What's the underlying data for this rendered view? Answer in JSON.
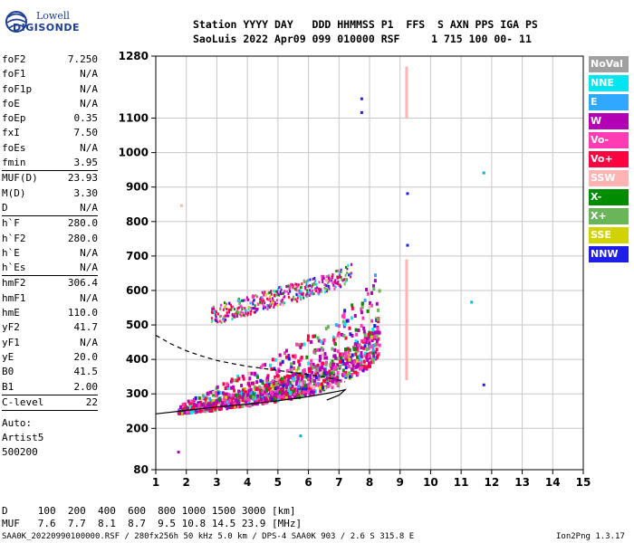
{
  "logo": {
    "line1": "Lowell",
    "line2": "DIGISONDE"
  },
  "header": {
    "row1": "Station YYYY DAY   DDD HHMMSS P1  FFS  S AXN PPS IGA PS",
    "row2": "SaoLuis 2022 Apr09 099 010000 RSF     1 715 100 00- 11"
  },
  "parameters": {
    "group1": [
      {
        "name": "foF2",
        "value": "7.250"
      },
      {
        "name": "foF1",
        "value": "N/A"
      },
      {
        "name": "foF1p",
        "value": "N/A"
      },
      {
        "name": "foE",
        "value": "N/A"
      },
      {
        "name": "foEp",
        "value": "0.35"
      },
      {
        "name": "fxI",
        "value": "7.50"
      },
      {
        "name": "foEs",
        "value": "N/A"
      },
      {
        "name": "fmin",
        "value": "3.95"
      }
    ],
    "group2": [
      {
        "name": "MUF(D)",
        "value": "23.93"
      },
      {
        "name": "M(D)",
        "value": "3.30"
      },
      {
        "name": "D",
        "value": "N/A"
      }
    ],
    "group3": [
      {
        "name": "h`F",
        "value": "280.0"
      },
      {
        "name": "h`F2",
        "value": "280.0"
      },
      {
        "name": "h`E",
        "value": "N/A"
      },
      {
        "name": "h`Es",
        "value": "N/A"
      }
    ],
    "group4": [
      {
        "name": "hmF2",
        "value": "306.4"
      },
      {
        "name": "hmF1",
        "value": "N/A"
      },
      {
        "name": "hmE",
        "value": "110.0"
      },
      {
        "name": "yF2",
        "value": "41.7"
      },
      {
        "name": "yF1",
        "value": "N/A"
      },
      {
        "name": "yE",
        "value": "20.0"
      },
      {
        "name": "B0",
        "value": "41.5"
      },
      {
        "name": "B1",
        "value": "2.00"
      }
    ],
    "group5": [
      {
        "name": "C-level",
        "value": "22"
      }
    ],
    "auto_lines": [
      "Auto:",
      "Artist5",
      "500200"
    ]
  },
  "legend": [
    {
      "label": "NoVal",
      "color": "#a0a0a0"
    },
    {
      "label": "NNE",
      "color": "#00e6f0"
    },
    {
      "label": "E",
      "color": "#30a8ff"
    },
    {
      "label": "W",
      "color": "#b400b4"
    },
    {
      "label": "Vo-",
      "color": "#ff3cb4"
    },
    {
      "label": "Vo+",
      "color": "#ff0040"
    },
    {
      "label": "SSW",
      "color": "#ffb4b4"
    },
    {
      "label": "X-",
      "color": "#008c00"
    },
    {
      "label": "X+",
      "color": "#6ab45a"
    },
    {
      "label": "SSE",
      "color": "#d2d200"
    },
    {
      "label": "NNW",
      "color": "#1e1ee6"
    }
  ],
  "muf_table": {
    "row_d": "D     100  200  400  600  800 1000 1500 3000 [km]",
    "row_muf": "MUF   7.6  7.7  8.1  8.7  9.5 10.8 14.5 23.9 [MHz]"
  },
  "footer": {
    "left": "SAA0K_20220990100000.RSF / 280fx256h 50 kHz 5.0 km / DPS-4 SAA0K 903 / 2.6 S 315.8 E",
    "right": "Ion2Png 1.3.17"
  },
  "chart_data": {
    "type": "scatter",
    "xlim": [
      1,
      15
    ],
    "ylim": [
      80,
      1280
    ],
    "x_ticks": [
      1,
      2,
      3,
      4,
      5,
      6,
      7,
      8,
      9,
      10,
      11,
      12,
      13,
      14,
      15
    ],
    "y_ticks": [
      80,
      200,
      300,
      400,
      500,
      600,
      700,
      800,
      900,
      1000,
      1100,
      1280
    ],
    "xlabel": "",
    "ylabel": "",
    "grid": true,
    "legend_position": "right",
    "profile_curve": [
      [
        1.0,
        242
      ],
      [
        2.0,
        252
      ],
      [
        3.0,
        262
      ],
      [
        4.0,
        270
      ],
      [
        5.0,
        280
      ],
      [
        6.0,
        292
      ],
      [
        7.0,
        308
      ],
      [
        7.2,
        312
      ],
      [
        7.0,
        296
      ],
      [
        6.6,
        282
      ]
    ],
    "dashed_curve": [
      [
        1.0,
        470
      ],
      [
        1.5,
        445
      ],
      [
        2.0,
        425
      ],
      [
        2.5,
        410
      ],
      [
        3.0,
        397
      ],
      [
        3.5,
        388
      ],
      [
        4.0,
        380
      ],
      [
        4.5,
        374
      ],
      [
        5.0,
        368
      ],
      [
        5.5,
        362
      ],
      [
        6.0,
        356
      ],
      [
        6.5,
        349
      ],
      [
        7.0,
        340
      ],
      [
        7.2,
        335
      ]
    ],
    "echo_traces": [
      {
        "trace": "F-lower",
        "x": [
          1.7,
          2.0,
          2.5,
          3.0,
          3.5,
          4.0,
          4.5,
          5.0,
          5.5,
          6.0,
          6.5,
          7.0,
          7.5,
          8.0,
          8.3
        ],
        "y": [
          255,
          258,
          262,
          266,
          272,
          278,
          285,
          292,
          300,
          310,
          322,
          338,
          360,
          395,
          430
        ]
      },
      {
        "trace": "F-multihop",
        "x": [
          2.8,
          3.0,
          3.5,
          4.0,
          4.5,
          5.0,
          5.5,
          6.0,
          6.5,
          7.0,
          7.4
        ],
        "y": [
          520,
          528,
          540,
          552,
          565,
          578,
          590,
          602,
          615,
          630,
          650
        ]
      },
      {
        "trace": "vertical-streak",
        "x": [
          9.2,
          9.2,
          9.2,
          9.2,
          9.2,
          9.2
        ],
        "y": [
          1100,
          1180,
          1250,
          640,
          500,
          380
        ]
      },
      {
        "trace": "isolated",
        "x": [
          7.7,
          7.7,
          9.2,
          9.2,
          11.7,
          11.3,
          11.7,
          1.8,
          5.7,
          1.7
        ],
        "y": [
          1160,
          1120,
          885,
          735,
          945,
          570,
          330,
          850,
          182,
          135
        ]
      }
    ]
  }
}
